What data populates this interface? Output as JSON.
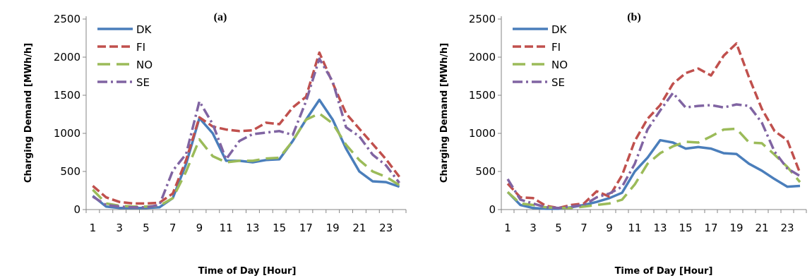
{
  "colors": {
    "DK": "#4a7ebb",
    "FI": "#c0504d",
    "NO": "#9bbb59",
    "SE": "#8064a2"
  },
  "chart_data": [
    {
      "type": "line",
      "title": "(a)",
      "xlabel": "Time of Day [Hour]",
      "ylabel": "Charging Demand [MWh/h]",
      "ylim": [
        0,
        2500
      ],
      "yticks": [
        0,
        500,
        1000,
        1500,
        2000,
        2500
      ],
      "xticks": [
        1,
        3,
        5,
        7,
        9,
        11,
        13,
        15,
        17,
        19,
        21,
        23
      ],
      "x": [
        1,
        2,
        3,
        4,
        5,
        6,
        7,
        8,
        9,
        10,
        11,
        12,
        13,
        14,
        15,
        16,
        17,
        18,
        19,
        20,
        21,
        22,
        23,
        24
      ],
      "legend_position": "top-left",
      "grid": false,
      "series": [
        {
          "name": "DK",
          "style": "solid",
          "values": [
            180,
            40,
            20,
            20,
            20,
            30,
            150,
            600,
            1200,
            1000,
            640,
            640,
            620,
            650,
            660,
            900,
            1180,
            1440,
            1180,
            800,
            500,
            370,
            360,
            300
          ]
        },
        {
          "name": "FI",
          "style": "dash",
          "values": [
            310,
            160,
            100,
            80,
            80,
            90,
            210,
            650,
            1210,
            1090,
            1050,
            1030,
            1040,
            1140,
            1120,
            1340,
            1480,
            2060,
            1660,
            1260,
            1060,
            860,
            660,
            430
          ]
        },
        {
          "name": "NO",
          "style": "longdash",
          "values": [
            260,
            80,
            50,
            40,
            40,
            50,
            150,
            500,
            920,
            700,
            620,
            640,
            640,
            670,
            680,
            900,
            1180,
            1260,
            1130,
            850,
            650,
            500,
            430,
            320
          ]
        },
        {
          "name": "SE",
          "style": "dashdot",
          "values": [
            170,
            60,
            40,
            30,
            30,
            60,
            510,
            730,
            1420,
            1120,
            660,
            900,
            990,
            1010,
            1030,
            980,
            1420,
            1980,
            1680,
            1080,
            960,
            720,
            580,
            350
          ]
        }
      ]
    },
    {
      "type": "line",
      "title": "(b)",
      "xlabel": "Time of Day [Hour]",
      "ylabel": "Charging Demand [MWh/h]",
      "ylim": [
        0,
        2500
      ],
      "yticks": [
        0,
        500,
        1000,
        1500,
        2000,
        2500
      ],
      "xticks": [
        1,
        3,
        5,
        7,
        9,
        11,
        13,
        15,
        17,
        19,
        21,
        23
      ],
      "x": [
        1,
        2,
        3,
        4,
        5,
        6,
        7,
        8,
        9,
        10,
        11,
        12,
        13,
        14,
        15,
        16,
        17,
        18,
        19,
        20,
        21,
        22,
        23,
        24
      ],
      "legend_position": "top-left",
      "grid": false,
      "series": [
        {
          "name": "DK",
          "style": "solid",
          "values": [
            230,
            60,
            20,
            10,
            10,
            30,
            60,
            100,
            150,
            220,
            500,
            680,
            910,
            880,
            800,
            820,
            800,
            740,
            730,
            600,
            510,
            400,
            300,
            310
          ]
        },
        {
          "name": "FI",
          "style": "dash",
          "values": [
            340,
            160,
            150,
            50,
            20,
            60,
            80,
            240,
            170,
            450,
            900,
            1190,
            1370,
            1650,
            1790,
            1850,
            1760,
            2020,
            2180,
            1730,
            1320,
            1030,
            910,
            480
          ]
        },
        {
          "name": "NO",
          "style": "longdash",
          "values": [
            230,
            80,
            60,
            30,
            20,
            20,
            40,
            60,
            80,
            130,
            330,
            600,
            740,
            830,
            890,
            880,
            960,
            1050,
            1060,
            880,
            870,
            720,
            560,
            360
          ]
        },
        {
          "name": "SE",
          "style": "dashdot",
          "values": [
            400,
            130,
            80,
            30,
            20,
            40,
            60,
            160,
            210,
            300,
            600,
            1050,
            1300,
            1530,
            1340,
            1360,
            1370,
            1340,
            1380,
            1360,
            1140,
            760,
            540,
            440
          ]
        }
      ]
    }
  ]
}
